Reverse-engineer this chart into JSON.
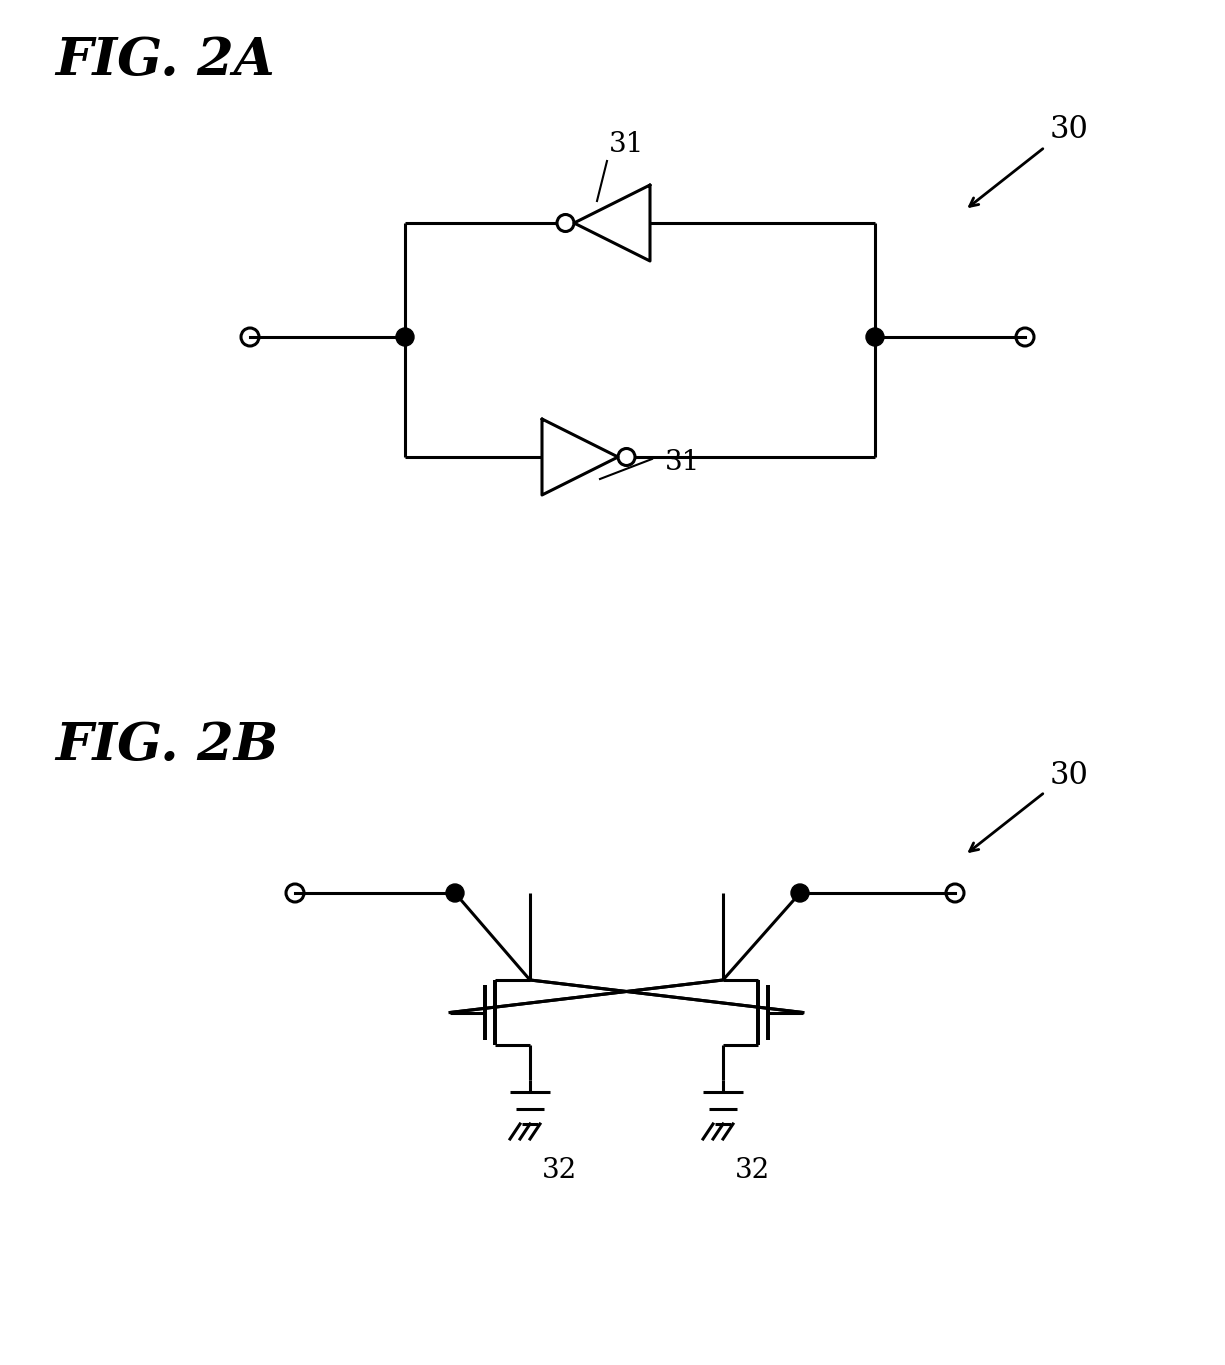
{
  "fig_title_2A": "FIG. 2A",
  "fig_title_2B": "FIG. 2B",
  "label_30": "30",
  "label_31_top": "31",
  "label_31_bot": "31",
  "label_32_left": "32",
  "label_32_right": "32",
  "bg_color": "#ffffff",
  "line_color": "#000000",
  "line_width": 2.2,
  "font_size_title": 38,
  "font_size_label": 20
}
